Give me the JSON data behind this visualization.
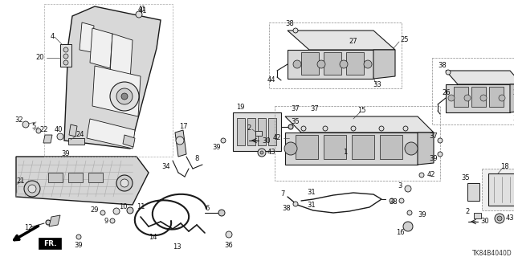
{
  "bg_color": "#ffffff",
  "line_color": "#1a1a1a",
  "text_color": "#111111",
  "diagram_code": "TK84B4040D",
  "figsize": [
    6.4,
    3.2
  ],
  "dpi": 100
}
